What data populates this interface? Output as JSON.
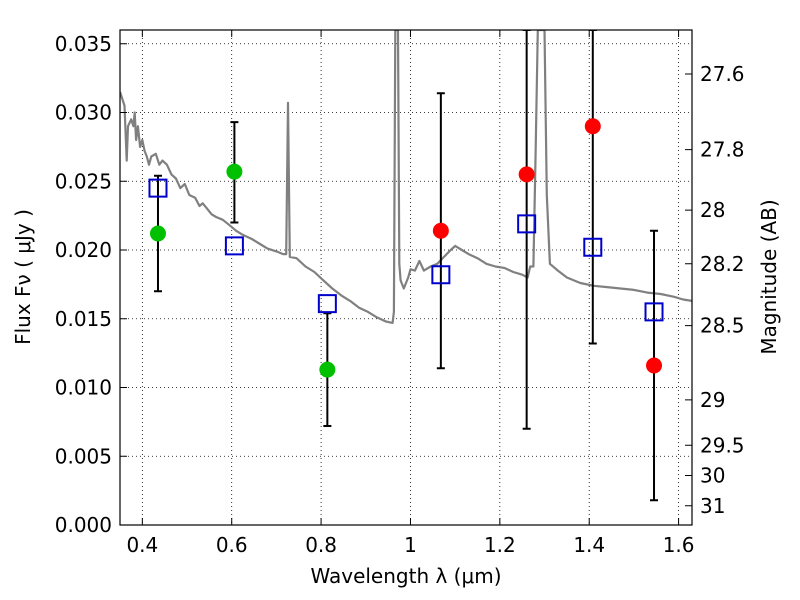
{
  "chart_data": {
    "type": "scatter",
    "xlabel": "Wavelength  λ (μm)",
    "ylabel": "Flux  Fν  ( μJy )",
    "ylabel_right": "Magnitude (AB)",
    "xlim": [
      0.35,
      1.63
    ],
    "ylim": [
      0.0,
      0.036
    ],
    "x_ticks": [
      0.4,
      0.6,
      0.8,
      1.0,
      1.2,
      1.4,
      1.6
    ],
    "x_tick_labels": [
      "0.4",
      "0.6",
      "0.8",
      "1",
      "1.2",
      "1.4",
      "1.6"
    ],
    "y_ticks": [
      0.0,
      0.005,
      0.01,
      0.015,
      0.02,
      0.025,
      0.03,
      0.035
    ],
    "y_tick_labels": [
      "0.000",
      "0.005",
      "0.010",
      "0.015",
      "0.020",
      "0.025",
      "0.030",
      "0.035"
    ],
    "right_ticks": [
      {
        "label": "27.6",
        "flux": 0.0328
      },
      {
        "label": "27.8",
        "flux": 0.0273
      },
      {
        "label": "28",
        "flux": 0.0229
      },
      {
        "label": "28.2",
        "flux": 0.019
      },
      {
        "label": "28.5",
        "flux": 0.0145
      },
      {
        "label": "29",
        "flux": 0.0091
      },
      {
        "label": "29.5",
        "flux": 0.0058
      },
      {
        "label": "30",
        "flux": 0.0036
      },
      {
        "label": "31",
        "flux": 0.0014
      }
    ],
    "grid": true,
    "colors": {
      "model": "#808080",
      "detected": "#00c000",
      "upper": "#ff0000",
      "model_phot": "#0000cc",
      "errorbar": "#000000"
    },
    "series": [
      {
        "kind": "points",
        "color": "detected",
        "points": [
          {
            "x": 0.435,
            "y": 0.0212,
            "yerr_low": 0.017,
            "yerr_high": 0.0254
          },
          {
            "x": 0.606,
            "y": 0.0257,
            "yerr_low": 0.022,
            "yerr_high": 0.0293
          },
          {
            "x": 0.814,
            "y": 0.0113,
            "yerr_low": 0.0072,
            "yerr_high": 0.0154
          }
        ]
      },
      {
        "kind": "points",
        "color": "upper",
        "points": [
          {
            "x": 1.068,
            "y": 0.0214,
            "yerr_low": 0.0114,
            "yerr_high": 0.0314
          },
          {
            "x": 1.26,
            "y": 0.0255,
            "yerr_low": 0.007,
            "yerr_high": 0.036
          },
          {
            "x": 1.408,
            "y": 0.029,
            "yerr_low": 0.0132,
            "yerr_high": 0.036
          },
          {
            "x": 1.545,
            "y": 0.0116,
            "yerr_low": 0.0018,
            "yerr_high": 0.0214
          }
        ]
      },
      {
        "kind": "squares",
        "color": "model_phot",
        "points": [
          {
            "x": 0.435,
            "y": 0.0245
          },
          {
            "x": 0.606,
            "y": 0.0203
          },
          {
            "x": 0.814,
            "y": 0.0161
          },
          {
            "x": 1.068,
            "y": 0.0182
          },
          {
            "x": 1.26,
            "y": 0.0219
          },
          {
            "x": 1.408,
            "y": 0.0202
          },
          {
            "x": 1.545,
            "y": 0.0155
          }
        ]
      },
      {
        "kind": "line",
        "color": "model",
        "points": [
          [
            0.35,
            0.0315
          ],
          [
            0.36,
            0.0305
          ],
          [
            0.365,
            0.0265
          ],
          [
            0.368,
            0.029
          ],
          [
            0.375,
            0.0295
          ],
          [
            0.38,
            0.029
          ],
          [
            0.383,
            0.03
          ],
          [
            0.386,
            0.028
          ],
          [
            0.39,
            0.029
          ],
          [
            0.395,
            0.0275
          ],
          [
            0.4,
            0.028
          ],
          [
            0.405,
            0.0272
          ],
          [
            0.41,
            0.0268
          ],
          [
            0.415,
            0.0262
          ],
          [
            0.42,
            0.0268
          ],
          [
            0.43,
            0.027
          ],
          [
            0.438,
            0.0262
          ],
          [
            0.445,
            0.0265
          ],
          [
            0.455,
            0.0262
          ],
          [
            0.465,
            0.0255
          ],
          [
            0.475,
            0.0252
          ],
          [
            0.485,
            0.0245
          ],
          [
            0.495,
            0.0248
          ],
          [
            0.505,
            0.024
          ],
          [
            0.518,
            0.0238
          ],
          [
            0.528,
            0.0232
          ],
          [
            0.535,
            0.0234
          ],
          [
            0.545,
            0.023
          ],
          [
            0.555,
            0.0226
          ],
          [
            0.565,
            0.0224
          ],
          [
            0.58,
            0.0222
          ],
          [
            0.595,
            0.0218
          ],
          [
            0.61,
            0.0214
          ],
          [
            0.625,
            0.0211
          ],
          [
            0.645,
            0.0208
          ],
          [
            0.665,
            0.0204
          ],
          [
            0.68,
            0.0201
          ],
          [
            0.7,
            0.0199
          ],
          [
            0.715,
            0.0197
          ],
          [
            0.722,
            0.0197
          ],
          [
            0.726,
            0.0307
          ],
          [
            0.73,
            0.0195
          ],
          [
            0.745,
            0.0194
          ],
          [
            0.765,
            0.0188
          ],
          [
            0.785,
            0.0184
          ],
          [
            0.805,
            0.0178
          ],
          [
            0.825,
            0.0172
          ],
          [
            0.845,
            0.0167
          ],
          [
            0.865,
            0.0163
          ],
          [
            0.885,
            0.0158
          ],
          [
            0.905,
            0.0155
          ],
          [
            0.925,
            0.0151
          ],
          [
            0.945,
            0.0148
          ],
          [
            0.96,
            0.0147
          ],
          [
            0.963,
            0.0155
          ],
          [
            0.966,
            0.036
          ],
          [
            0.972,
            0.036
          ],
          [
            0.975,
            0.019
          ],
          [
            0.978,
            0.0178
          ],
          [
            0.985,
            0.0172
          ],
          [
            0.995,
            0.018
          ],
          [
            1.0,
            0.0186
          ],
          [
            1.01,
            0.0185
          ],
          [
            1.02,
            0.0192
          ],
          [
            1.03,
            0.0185
          ],
          [
            1.045,
            0.0188
          ],
          [
            1.06,
            0.019
          ],
          [
            1.075,
            0.0195
          ],
          [
            1.09,
            0.02
          ],
          [
            1.1,
            0.0203
          ],
          [
            1.115,
            0.02
          ],
          [
            1.13,
            0.0197
          ],
          [
            1.15,
            0.0194
          ],
          [
            1.17,
            0.019
          ],
          [
            1.19,
            0.0188
          ],
          [
            1.21,
            0.0187
          ],
          [
            1.23,
            0.0184
          ],
          [
            1.25,
            0.0182
          ],
          [
            1.262,
            0.018
          ],
          [
            1.268,
            0.0188
          ],
          [
            1.275,
            0.0188
          ],
          [
            1.28,
            0.027
          ],
          [
            1.285,
            0.036
          ],
          [
            1.3,
            0.036
          ],
          [
            1.305,
            0.024
          ],
          [
            1.312,
            0.019
          ],
          [
            1.33,
            0.0185
          ],
          [
            1.35,
            0.018
          ],
          [
            1.38,
            0.0176
          ],
          [
            1.41,
            0.0174
          ],
          [
            1.44,
            0.0173
          ],
          [
            1.47,
            0.0172
          ],
          [
            1.5,
            0.0171
          ],
          [
            1.53,
            0.0169
          ],
          [
            1.56,
            0.0168
          ],
          [
            1.59,
            0.0166
          ],
          [
            1.61,
            0.0164
          ],
          [
            1.63,
            0.0163
          ]
        ]
      }
    ]
  }
}
